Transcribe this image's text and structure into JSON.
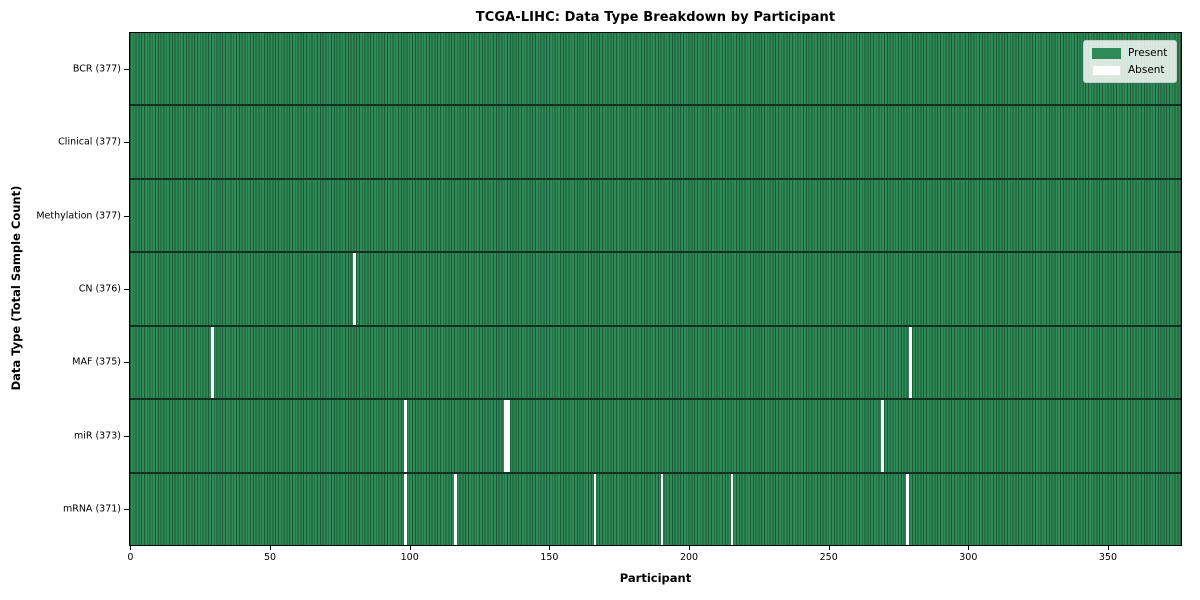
{
  "chart_data": {
    "type": "heatmap",
    "title": "TCGA-LIHC: Data Type Breakdown by Participant",
    "xlabel": "Participant",
    "ylabel": "Data Type (Total Sample Count)",
    "x_ticks": [
      0,
      50,
      100,
      150,
      200,
      250,
      300,
      350
    ],
    "xlim": [
      -0.5,
      376.5
    ],
    "n_participants": 377,
    "grid": false,
    "legend_position": "upper right",
    "legend": [
      {
        "label": "Present",
        "color": "#2e8b57"
      },
      {
        "label": "Absent",
        "color": "#ffffff"
      }
    ],
    "rows": [
      {
        "name": "BCR",
        "label": "BCR (377)",
        "present_count": 377,
        "absent_participants": []
      },
      {
        "name": "Clinical",
        "label": "Clinical (377)",
        "present_count": 377,
        "absent_participants": []
      },
      {
        "name": "Methylation",
        "label": "Methylation (377)",
        "present_count": 377,
        "absent_participants": []
      },
      {
        "name": "CN",
        "label": "CN (376)",
        "present_count": 376,
        "absent_participants": [
          80
        ]
      },
      {
        "name": "MAF",
        "label": "MAF (375)",
        "present_count": 375,
        "absent_participants": [
          29,
          279
        ]
      },
      {
        "name": "miR",
        "label": "miR (373)",
        "present_count": 373,
        "absent_participants": [
          98,
          134,
          135,
          269
        ]
      },
      {
        "name": "mRNA",
        "label": "mRNA (371)",
        "present_count": 371,
        "absent_participants": [
          98,
          116,
          166,
          190,
          215,
          278
        ]
      }
    ],
    "colors": {
      "present": "#2e8b57",
      "present_edge": "#1d5a39",
      "absent": "#ffffff",
      "row_divider": "#16301f",
      "axis": "#000000",
      "background": "#ffffff"
    }
  }
}
